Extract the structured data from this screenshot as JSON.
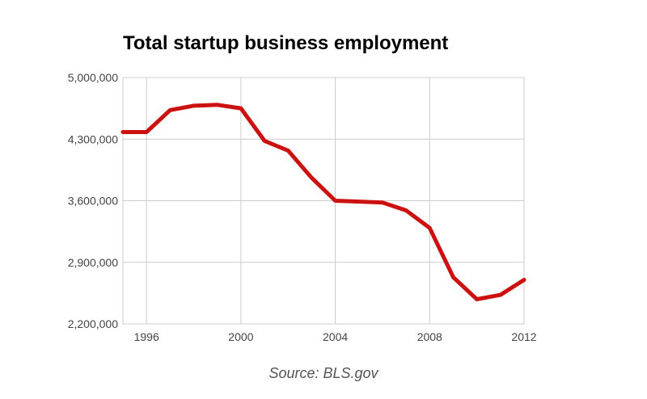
{
  "chart_data": {
    "type": "line",
    "title": "Total startup business employment",
    "source": "Source: BLS.gov",
    "xlabel": "",
    "ylabel": "",
    "xlim": [
      1995,
      2012
    ],
    "ylim": [
      2200000,
      5000000
    ],
    "x_ticks": [
      1996,
      2000,
      2004,
      2008,
      2012
    ],
    "y_ticks": [
      5000000,
      4300000,
      3600000,
      2900000,
      2200000
    ],
    "x_tick_labels": [
      "1996",
      "2000",
      "2004",
      "2008",
      "2012"
    ],
    "y_tick_labels": [
      "5,000,000",
      "4,300,000",
      "3,600,000",
      "2,900,000",
      "2,200,000"
    ],
    "grid": true,
    "series": [
      {
        "color": "#cc1111",
        "x": [
          1995,
          1996,
          1997,
          1998,
          1999,
          2000,
          2001,
          2002,
          2003,
          2004,
          2005,
          2006,
          2007,
          2008,
          2009,
          2010,
          2011,
          2012
        ],
        "values": [
          4380000,
          4380000,
          4630000,
          4680000,
          4690000,
          4650000,
          4280000,
          4170000,
          3860000,
          3600000,
          3590000,
          3580000,
          3490000,
          3290000,
          2730000,
          2480000,
          2530000,
          2700000
        ]
      }
    ]
  }
}
